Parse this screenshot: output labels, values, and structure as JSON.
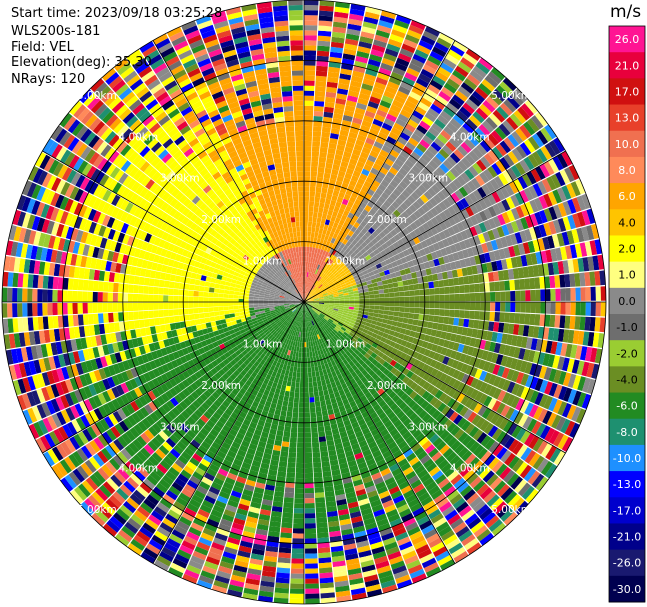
{
  "header": {
    "start_time": "Start time: 2023/09/18 03:25:28",
    "device": "WLS200s-181",
    "field": "Field: VEL",
    "elevation": "Elevation(deg): 35.30",
    "nrays": "NRays: 120"
  },
  "colorbar": {
    "unit": "m/s",
    "bins": [
      {
        "label": "26.0",
        "color": "#ff1493"
      },
      {
        "label": "21.0",
        "color": "#e8003c"
      },
      {
        "label": "17.0",
        "color": "#d01010"
      },
      {
        "label": "13.0",
        "color": "#e8402a"
      },
      {
        "label": "10.0",
        "color": "#f07050"
      },
      {
        "label": "8.0",
        "color": "#ff8a5a"
      },
      {
        "label": "6.0",
        "color": "#ffa500"
      },
      {
        "label": "4.0",
        "color": "#ffc400"
      },
      {
        "label": "2.0",
        "color": "#ffff00"
      },
      {
        "label": "1.0",
        "color": "#ffff80"
      },
      {
        "label": "0.0",
        "color": "#8a8a8a"
      },
      {
        "label": "-1.0",
        "color": "#6e6e6e"
      },
      {
        "label": "-2.0",
        "color": "#9acd32"
      },
      {
        "label": "-4.0",
        "color": "#6b8e23"
      },
      {
        "label": "-6.0",
        "color": "#228b22"
      },
      {
        "label": "-8.0",
        "color": "#1e9070"
      },
      {
        "label": "-10.0",
        "color": "#1e90ff"
      },
      {
        "label": "-13.0",
        "color": "#0000ff"
      },
      {
        "label": "-17.0",
        "color": "#0000cd"
      },
      {
        "label": "-21.0",
        "color": "#00008b"
      },
      {
        "label": "-26.0",
        "color": "#191970"
      },
      {
        "label": "-30.0",
        "color": "#000050"
      }
    ]
  },
  "chart_data": {
    "type": "heatmap",
    "projection": "polar-ppi",
    "field": "VEL",
    "nrays": 120,
    "max_range_km": 5,
    "range_rings_km": [
      1,
      2,
      3,
      4,
      5
    ],
    "ring_labels": [
      "1.00km",
      "2.00km",
      "3.00km",
      "4.00km",
      "5.00km"
    ],
    "sector_velocity_summary": [
      {
        "sector": "north",
        "near_range": "10.0",
        "mid_range": "6.0"
      },
      {
        "sector": "north-east",
        "near_range": "4.0",
        "mid_range": "0.0"
      },
      {
        "sector": "east",
        "near_range": "-2.0",
        "mid_range": "-4.0"
      },
      {
        "sector": "south",
        "near_range": "-6.0",
        "mid_range": "-6.0"
      },
      {
        "sector": "west",
        "near_range": "0.0",
        "mid_range": "2.0"
      }
    ]
  }
}
